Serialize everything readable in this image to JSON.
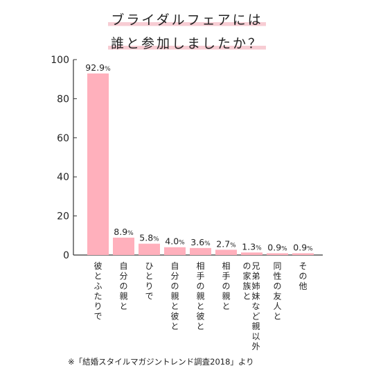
{
  "title_lines": [
    "ブライダルフェアには",
    "誰と参加しましたか？"
  ],
  "note": "※「結婚スタイルマガジントレンド調査2018」より",
  "colors": {
    "bar": "#ffb0bc",
    "axis": "#333333",
    "text": "#222222"
  },
  "chart_data": {
    "type": "bar",
    "categories": [
      "彼とふたりで",
      "自分の親と",
      "ひとりで",
      "自分の親と彼と",
      "相手の親と彼と",
      "相手の親と",
      "兄弟姉妹など親以外の家族と",
      "同性の友人と",
      "その他"
    ],
    "values": [
      92.9,
      8.9,
      5.8,
      4.0,
      3.6,
      2.7,
      1.3,
      0.9,
      0.9
    ],
    "value_labels": [
      "92.9%",
      "8.9%",
      "5.8%",
      "4.0%",
      "3.6%",
      "2.7%",
      "1.3%",
      "0.9%",
      "0.9%"
    ],
    "ylim": [
      0,
      100
    ],
    "yticks": [
      "0",
      "20",
      "40",
      "60",
      "80",
      "100"
    ],
    "grid": false
  }
}
